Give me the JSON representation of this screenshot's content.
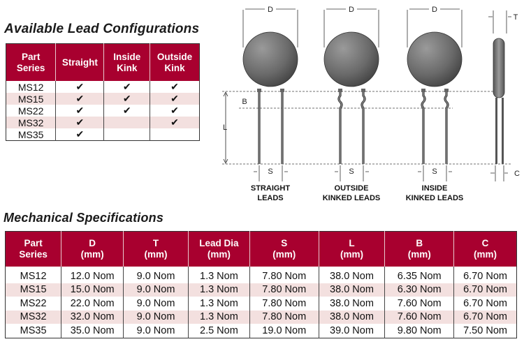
{
  "lead_configurations": {
    "title": "Available Lead Configurations",
    "headers": [
      "Part\nSeries",
      "Straight",
      "Inside\nKink",
      "Outside\nKink"
    ],
    "check_mark": "✔",
    "rows": [
      {
        "series": "MS12",
        "straight": true,
        "inside_kink": true,
        "outside_kink": true
      },
      {
        "series": "MS15",
        "straight": true,
        "inside_kink": true,
        "outside_kink": true
      },
      {
        "series": "MS22",
        "straight": true,
        "inside_kink": true,
        "outside_kink": true
      },
      {
        "series": "MS32",
        "straight": true,
        "inside_kink": false,
        "outside_kink": true
      },
      {
        "series": "MS35",
        "straight": true,
        "inside_kink": false,
        "outside_kink": false
      }
    ]
  },
  "diagram": {
    "dimension_labels": {
      "D": "D",
      "T": "T",
      "B": "B",
      "L": "L",
      "S": "S",
      "C": "C"
    },
    "captions": [
      {
        "line1": "STRAIGHT",
        "line2": "LEADS"
      },
      {
        "line1": "OUTSIDE",
        "line2": "KINKED LEADS"
      },
      {
        "line1": "INSIDE",
        "line2": "KINKED LEADS"
      }
    ]
  },
  "mechanical_specifications": {
    "title": "Mechanical Specifications",
    "headers": [
      [
        "Part",
        "Series"
      ],
      [
        "D",
        "(mm)"
      ],
      [
        "T",
        "(mm)"
      ],
      [
        "Lead Dia",
        "(mm)"
      ],
      [
        "S",
        "(mm)"
      ],
      [
        "L",
        "(mm)"
      ],
      [
        "B",
        "(mm)"
      ],
      [
        "C",
        "(mm)"
      ]
    ],
    "rows": [
      [
        "MS12",
        "12.0 Nom",
        "9.0 Nom",
        "1.3 Nom",
        "7.80 Nom",
        "38.0 Nom",
        "6.35 Nom",
        "6.70 Nom"
      ],
      [
        "MS15",
        "15.0 Nom",
        "9.0 Nom",
        "1.3 Nom",
        "7.80 Nom",
        "38.0 Nom",
        "6.30 Nom",
        "6.70 Nom"
      ],
      [
        "MS22",
        "22.0 Nom",
        "9.0 Nom",
        "1.3 Nom",
        "7.80 Nom",
        "38.0 Nom",
        "7.60 Nom",
        "6.70 Nom"
      ],
      [
        "MS32",
        "32.0 Nom",
        "9.0 Nom",
        "1.3 Nom",
        "7.80 Nom",
        "38.0 Nom",
        "7.60 Nom",
        "6.70 Nom"
      ],
      [
        "MS35",
        "35.0 Nom",
        "9.0 Nom",
        "2.5 Nom",
        "19.0 Nom",
        "39.0 Nom",
        "9.80 Nom",
        "7.50 Nom"
      ]
    ]
  },
  "colors": {
    "header_bg": "#a8002f",
    "alt_row_bg": "#f3e0df"
  }
}
